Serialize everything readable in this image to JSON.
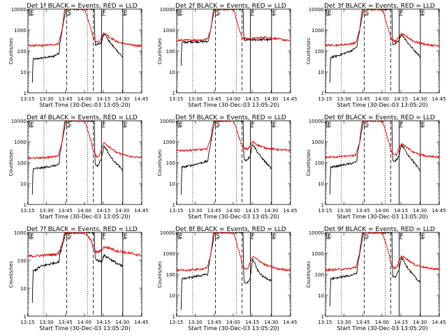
{
  "colors": {
    "events": "#000000",
    "lld": "#e00000",
    "background": "#ffffff",
    "axis": "#000000"
  },
  "common": {
    "title_suffix": " BLACK = Events, RED = LLD",
    "xlabel": "Start Time (30-Dec-03 13:05:20)",
    "ylabel": "Counts/sec",
    "xticks": [
      "13:15",
      "13:30",
      "13:45",
      "14:00",
      "14:15",
      "14:30",
      "14:45"
    ],
    "yticks": [
      "1",
      "10",
      "100",
      "1000",
      "10000"
    ],
    "markers": {
      "S": "S",
      "F": "F",
      "E": "E"
    }
  },
  "chart_data": [
    {
      "type": "line",
      "title": "Det 1f BLACK = Events, RED = LLD",
      "detector": "Det 1f",
      "xlabel": "Start Time (30-Dec-03 13:05:20)",
      "ylabel": "Counts/sec",
      "yscale": "log",
      "ylim": [
        1,
        10000
      ],
      "xlim_min": [
        10,
        100
      ],
      "vlines_min": {
        "dotted": [
          22.6,
          57.2
        ],
        "dashed": [
          40.6,
          61.6
        ],
        "solid": [
          68.2,
          85
        ]
      },
      "series": [
        {
          "name": "Events",
          "x": [
            13.5,
            14,
            20,
            30,
            34.8,
            35,
            40,
            55,
            60,
            62.5,
            63,
            65,
            68,
            70,
            72,
            74,
            78,
            82,
            85
          ],
          "y": [
            3,
            40,
            45,
            55,
            80,
            200,
            10000,
            10000,
            10000,
            10000,
            200,
            200,
            250,
            700,
            500,
            300,
            150,
            80,
            50
          ]
        },
        {
          "name": "LLD",
          "x": [
            10,
            20,
            30,
            34,
            37,
            39,
            41,
            45,
            50,
            55,
            60,
            62,
            64,
            66,
            68,
            70,
            74,
            80,
            90,
            100
          ],
          "y": [
            180,
            180,
            200,
            220,
            1000,
            10000,
            10000,
            10000,
            10000,
            10000,
            1000,
            400,
            280,
            280,
            400,
            750,
            500,
            280,
            200,
            170
          ]
        }
      ]
    },
    {
      "type": "line",
      "title": "Det 2f BLACK = Events, RED = LLD",
      "detector": "Det 2f",
      "xlabel": "Start Time (30-Dec-03 13:05:20)",
      "ylabel": "Counts/sec",
      "yscale": "log",
      "ylim": [
        1,
        10000
      ],
      "xlim_min": [
        10,
        100
      ],
      "vlines_min": {
        "dotted": [
          22.6,
          57.2
        ],
        "dashed": [
          40.6,
          61.6
        ],
        "solid": [
          68.2,
          85
        ]
      },
      "series": [
        {
          "name": "Events",
          "x": [
            13.5,
            14,
            20,
            30,
            34.8,
            35,
            40,
            55,
            60,
            62.5,
            63,
            70,
            80,
            85
          ],
          "y": [
            20,
            250,
            270,
            280,
            280,
            300,
            10000,
            10000,
            10000,
            10000,
            320,
            340,
            350,
            330
          ]
        },
        {
          "name": "LLD",
          "x": [
            10,
            20,
            30,
            34,
            37,
            39,
            41,
            45,
            50,
            55,
            60,
            62,
            66,
            70,
            80,
            90,
            100
          ],
          "y": [
            320,
            330,
            340,
            360,
            1000,
            10000,
            10000,
            10000,
            10000,
            10000,
            800,
            420,
            380,
            400,
            450,
            380,
            300
          ]
        }
      ]
    },
    {
      "type": "line",
      "title": "Det 3f BLACK = Events, RED = LLD",
      "detector": "Det 3f",
      "xlabel": "Start Time (30-Dec-03 13:05:20)",
      "ylabel": "Counts/sec",
      "yscale": "log",
      "ylim": [
        1,
        10000
      ],
      "xlim_min": [
        10,
        100
      ],
      "vlines_min": {
        "dotted": [
          22.6,
          57.2
        ],
        "dashed": [
          40.6,
          61.6
        ],
        "solid": [
          68.2,
          85
        ]
      },
      "series": [
        {
          "name": "Events",
          "x": [
            13.5,
            14,
            20,
            30,
            34.8,
            35,
            40,
            55,
            60,
            62.5,
            63,
            65,
            68,
            70,
            72,
            74,
            78,
            82,
            85
          ],
          "y": [
            3,
            50,
            60,
            100,
            150,
            200,
            10000,
            10000,
            10000,
            10000,
            200,
            220,
            300,
            600,
            450,
            300,
            150,
            80,
            50
          ]
        },
        {
          "name": "LLD",
          "x": [
            10,
            20,
            30,
            34,
            37,
            39,
            41,
            45,
            50,
            55,
            60,
            62,
            64,
            66,
            68,
            70,
            74,
            80,
            90,
            100
          ],
          "y": [
            190,
            190,
            220,
            250,
            1000,
            10000,
            10000,
            10000,
            10000,
            10000,
            1000,
            400,
            300,
            300,
            450,
            650,
            500,
            280,
            200,
            170
          ]
        }
      ]
    },
    {
      "type": "line",
      "title": "Det 4f BLACK = Events, RED = LLD",
      "detector": "Det 4f",
      "xlabel": "Start Time (30-Dec-03 13:05:20)",
      "ylabel": "Counts/sec",
      "yscale": "log",
      "ylim": [
        1,
        10000
      ],
      "xlim_min": [
        10,
        100
      ],
      "vlines_min": {
        "dotted": [
          22.6,
          57.2
        ],
        "dashed": [
          40.6,
          61.6
        ],
        "solid": [
          68.2,
          85
        ]
      },
      "series": [
        {
          "name": "Events",
          "x": [
            13.5,
            14,
            20,
            30,
            34.8,
            35,
            40,
            55,
            60,
            62.5,
            63,
            65,
            68,
            70,
            72,
            74,
            78,
            82,
            85
          ],
          "y": [
            3,
            50,
            55,
            70,
            80,
            200,
            10000,
            10000,
            10000,
            10000,
            80,
            70,
            150,
            600,
            450,
            250,
            120,
            70,
            40
          ]
        },
        {
          "name": "LLD",
          "x": [
            10,
            20,
            30,
            34,
            37,
            39,
            41,
            45,
            50,
            55,
            60,
            62,
            64,
            66,
            68,
            70,
            74,
            80,
            90,
            100
          ],
          "y": [
            160,
            170,
            190,
            220,
            1000,
            10000,
            10000,
            10000,
            10000,
            10000,
            1000,
            300,
            200,
            200,
            400,
            900,
            600,
            300,
            200,
            170
          ]
        }
      ]
    },
    {
      "type": "line",
      "title": "Det 5f BLACK = Events, RED = LLD",
      "detector": "Det 5f",
      "xlabel": "Start Time (30-Dec-03 13:05:20)",
      "ylabel": "Counts/sec",
      "yscale": "log",
      "ylim": [
        1,
        10000
      ],
      "xlim_min": [
        10,
        100
      ],
      "vlines_min": {
        "dotted": [
          22.6,
          57.2
        ],
        "dashed": [
          40.6,
          61.6
        ],
        "solid": [
          68.2,
          85
        ]
      },
      "series": [
        {
          "name": "Events",
          "x": [
            13.5,
            14,
            20,
            30,
            34.8,
            35,
            40,
            55,
            60,
            62.5,
            63,
            65,
            68,
            70,
            72,
            74,
            78,
            82,
            85
          ],
          "y": [
            3,
            60,
            70,
            100,
            120,
            200,
            10000,
            10000,
            10000,
            10000,
            150,
            130,
            200,
            800,
            500,
            300,
            150,
            80,
            50
          ]
        },
        {
          "name": "LLD",
          "x": [
            10,
            20,
            30,
            34,
            37,
            39,
            41,
            45,
            50,
            55,
            60,
            62,
            64,
            66,
            68,
            70,
            74,
            80,
            90,
            100
          ],
          "y": [
            380,
            390,
            420,
            450,
            1500,
            10000,
            10000,
            10000,
            10000,
            10000,
            1200,
            600,
            450,
            450,
            600,
            1000,
            700,
            500,
            420,
            380
          ]
        }
      ]
    },
    {
      "type": "line",
      "title": "Det 6f BLACK = Events, RED = LLD",
      "detector": "Det 6f",
      "xlabel": "Start Time (30-Dec-03 13:05:20)",
      "ylabel": "Counts/sec",
      "yscale": "log",
      "ylim": [
        1,
        10000
      ],
      "xlim_min": [
        10,
        100
      ],
      "vlines_min": {
        "dotted": [
          22.6,
          57.2
        ],
        "dashed": [
          40.6,
          61.6
        ],
        "solid": [
          68.2,
          85
        ]
      },
      "series": [
        {
          "name": "Events",
          "x": [
            13.5,
            14,
            20,
            30,
            34.8,
            35,
            40,
            55,
            60,
            62.5,
            63,
            65,
            68,
            70,
            72,
            74,
            78,
            82,
            85
          ],
          "y": [
            3,
            60,
            70,
            90,
            110,
            200,
            10000,
            10000,
            10000,
            10000,
            120,
            110,
            200,
            700,
            500,
            300,
            150,
            70,
            40
          ]
        },
        {
          "name": "LLD",
          "x": [
            10,
            20,
            30,
            34,
            37,
            39,
            41,
            45,
            50,
            55,
            60,
            62,
            64,
            66,
            68,
            70,
            74,
            80,
            90,
            100
          ],
          "y": [
            180,
            190,
            210,
            230,
            1000,
            10000,
            10000,
            10000,
            10000,
            10000,
            1000,
            350,
            250,
            250,
            450,
            800,
            550,
            300,
            200,
            180
          ]
        }
      ]
    },
    {
      "type": "line",
      "title": "Det 7f BLACK = Events, RED = LLD",
      "detector": "Det 7f",
      "xlabel": "Start Time (30-Dec-03 13:05:20)",
      "ylabel": "Counts/sec",
      "yscale": "log",
      "ylim": [
        1,
        1000
      ],
      "xlim_min": [
        10,
        100
      ],
      "vlines_min": {
        "dotted": [
          22.6,
          57.2
        ],
        "dashed": [
          40.6,
          61.6
        ],
        "solid": [
          68.2,
          85
        ]
      },
      "series": [
        {
          "name": "Events",
          "x": [
            13.5,
            14,
            20,
            30,
            34.8,
            35,
            40,
            55,
            60,
            62.5,
            63,
            65,
            68,
            70,
            74,
            78,
            82,
            85
          ],
          "y": [
            3,
            40,
            60,
            80,
            90,
            150,
            1000,
            1000,
            1000,
            1000,
            120,
            100,
            90,
            150,
            120,
            90,
            70,
            60
          ]
        },
        {
          "name": "LLD",
          "x": [
            10,
            20,
            30,
            34,
            37,
            39,
            41,
            45,
            50,
            55,
            60,
            62,
            64,
            66,
            68,
            70,
            74,
            80,
            90,
            100
          ],
          "y": [
            140,
            150,
            160,
            170,
            400,
            1000,
            1000,
            1000,
            1000,
            1000,
            500,
            250,
            200,
            200,
            230,
            300,
            280,
            220,
            180,
            150
          ]
        }
      ]
    },
    {
      "type": "line",
      "title": "Det 8f BLACK = Events, RED = LLD",
      "detector": "Det 8f",
      "xlabel": "Start Time (30-Dec-03 13:05:20)",
      "ylabel": "Counts/sec",
      "yscale": "log",
      "ylim": [
        1,
        10000
      ],
      "xlim_min": [
        10,
        100
      ],
      "vlines_min": {
        "dotted": [
          22.6,
          57.2
        ],
        "dashed": [
          40.6,
          61.6
        ],
        "solid": [
          68.2,
          85
        ]
      },
      "series": [
        {
          "name": "Events",
          "x": [
            13.5,
            14,
            20,
            30,
            34.8,
            35,
            40,
            55,
            60,
            62.5,
            63,
            65,
            68,
            70,
            72,
            74,
            78,
            82,
            85
          ],
          "y": [
            2,
            60,
            70,
            90,
            100,
            200,
            10000,
            10000,
            10000,
            10000,
            40,
            35,
            60,
            550,
            300,
            150,
            80,
            60,
            50
          ]
        },
        {
          "name": "LLD",
          "x": [
            10,
            20,
            30,
            34,
            37,
            39,
            41,
            45,
            50,
            55,
            60,
            62,
            64,
            66,
            68,
            70,
            74,
            80,
            90,
            100
          ],
          "y": [
            150,
            160,
            180,
            200,
            900,
            10000,
            10000,
            10000,
            10000,
            10000,
            900,
            250,
            180,
            180,
            350,
            700,
            500,
            280,
            180,
            160
          ]
        }
      ]
    },
    {
      "type": "line",
      "title": "Det 9f BLACK = Events, RED = LLD",
      "detector": "Det 9f",
      "xlabel": "Start Time (30-Dec-03 13:05:20)",
      "ylabel": "Counts/sec",
      "yscale": "log",
      "ylim": [
        1,
        10000
      ],
      "xlim_min": [
        10,
        100
      ],
      "vlines_min": {
        "dotted": [
          22.6,
          57.2
        ],
        "dashed": [
          40.6,
          61.6
        ],
        "solid": [
          68.2,
          85
        ]
      },
      "series": [
        {
          "name": "Events",
          "x": [
            13.5,
            14,
            20,
            30,
            34.8,
            35,
            40,
            55,
            60,
            62.5,
            63,
            65,
            68,
            70,
            72,
            74,
            78,
            82,
            85
          ],
          "y": [
            3,
            60,
            70,
            90,
            110,
            200,
            10000,
            10000,
            10000,
            10000,
            80,
            70,
            150,
            650,
            450,
            250,
            120,
            60,
            40
          ]
        },
        {
          "name": "LLD",
          "x": [
            10,
            20,
            30,
            34,
            37,
            39,
            41,
            45,
            50,
            55,
            60,
            62,
            64,
            66,
            68,
            70,
            74,
            80,
            90,
            100
          ],
          "y": [
            160,
            170,
            190,
            220,
            1000,
            10000,
            10000,
            10000,
            10000,
            10000,
            1000,
            300,
            200,
            200,
            400,
            750,
            550,
            300,
            200,
            170
          ]
        }
      ]
    }
  ]
}
